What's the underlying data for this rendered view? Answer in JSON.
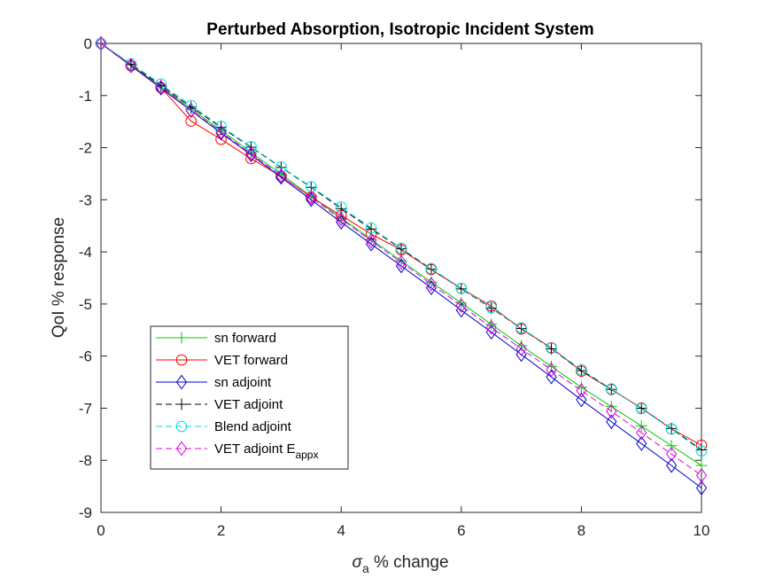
{
  "chart_data": {
    "type": "line",
    "title": "Perturbed Absorption, Isotropic Incident System",
    "xlabel": {
      "symbol": "σ",
      "subscript": "a",
      "text": " % change"
    },
    "ylabel": "QoI % response",
    "xlim": [
      0,
      10
    ],
    "ylim": [
      -9,
      0
    ],
    "xticks": [
      0,
      2,
      4,
      6,
      8,
      10
    ],
    "yticks": [
      0,
      -1,
      -2,
      -3,
      -4,
      -5,
      -6,
      -7,
      -8,
      -9
    ],
    "grid": false,
    "legend_position": "lower-left",
    "x": [
      0,
      0.5,
      1,
      1.5,
      2,
      2.5,
      3,
      3.5,
      4,
      4.5,
      5,
      5.5,
      6,
      6.5,
      7,
      7.5,
      8,
      8.5,
      9,
      9.5,
      10
    ],
    "series": [
      {
        "name": "sn forward",
        "color": "#00cc00",
        "dash": "solid",
        "marker": "plus",
        "values": [
          0,
          -0.41,
          -0.83,
          -1.25,
          -1.67,
          -2.09,
          -2.51,
          -2.93,
          -3.35,
          -3.76,
          -4.17,
          -4.58,
          -4.98,
          -5.39,
          -5.8,
          -6.2,
          -6.6,
          -6.97,
          -7.34,
          -7.72,
          -8.1
        ]
      },
      {
        "name": "VET forward",
        "color": "#ff0000",
        "dash": "solid",
        "marker": "circle",
        "values": [
          0,
          -0.43,
          -0.85,
          -1.49,
          -1.84,
          -2.21,
          -2.55,
          -2.95,
          -3.3,
          -3.66,
          -3.96,
          -4.34,
          -4.7,
          -5.04,
          -5.48,
          -5.84,
          -6.29,
          -6.64,
          -7.0,
          -7.4,
          -7.71
        ]
      },
      {
        "name": "sn adjoint",
        "color": "#0000cc",
        "dash": "solid",
        "marker": "diamond",
        "values": [
          0,
          -0.43,
          -0.86,
          -1.29,
          -1.72,
          -2.14,
          -2.57,
          -3.0,
          -3.43,
          -3.85,
          -4.27,
          -4.69,
          -5.12,
          -5.54,
          -5.97,
          -6.4,
          -6.84,
          -7.26,
          -7.68,
          -8.1,
          -8.53
        ]
      },
      {
        "name": "VET adjoint",
        "color": "#000000",
        "dash": "dashed",
        "marker": "plus",
        "values": [
          0,
          -0.4,
          -0.81,
          -1.22,
          -1.61,
          -1.99,
          -2.38,
          -2.76,
          -3.17,
          -3.56,
          -3.94,
          -4.33,
          -4.71,
          -5.08,
          -5.47,
          -5.86,
          -6.28,
          -6.64,
          -7.0,
          -7.39,
          -7.8
        ]
      },
      {
        "name": "Blend adjoint",
        "color": "#00dddd",
        "dash": "dashed",
        "marker": "circle",
        "values": [
          0,
          -0.39,
          -0.78,
          -1.19,
          -1.59,
          -1.98,
          -2.37,
          -2.75,
          -3.14,
          -3.54,
          -3.93,
          -4.32,
          -4.7,
          -5.07,
          -5.46,
          -5.85,
          -6.26,
          -6.63,
          -7.01,
          -7.4,
          -7.82
        ]
      },
      {
        "name": "VET adjoint E",
        "name_subscript": "appx",
        "color": "#e000e0",
        "dash": "dashed",
        "marker": "diamond",
        "values": [
          0,
          -0.42,
          -0.84,
          -1.28,
          -1.7,
          -2.12,
          -2.54,
          -2.96,
          -3.37,
          -3.79,
          -4.2,
          -4.62,
          -5.03,
          -5.45,
          -5.86,
          -6.26,
          -6.66,
          -7.06,
          -7.47,
          -7.88,
          -8.29
        ]
      }
    ]
  }
}
